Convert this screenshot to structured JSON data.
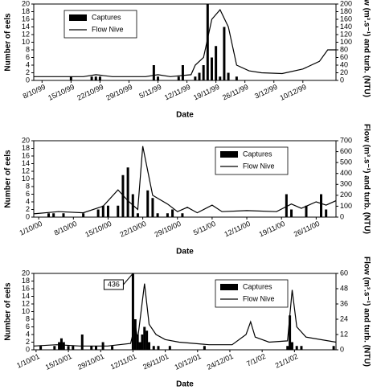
{
  "chart_data": [
    {
      "type": "combo",
      "xlabel": "Date",
      "ylabel": "Number of eels",
      "y2label": "Flow (m³.s⁻¹) and turb. (NTU)",
      "legend": "upper left",
      "xlim": [
        "1999-10-06",
        "1999-12-18"
      ],
      "xticks": [
        {
          "value": "1999-10-08",
          "label": "8/10/99"
        },
        {
          "value": "1999-10-15",
          "label": "15/10/99"
        },
        {
          "value": "1999-10-22",
          "label": "22/10/99"
        },
        {
          "value": "1999-10-29",
          "label": "29/10/99"
        },
        {
          "value": "1999-11-05",
          "label": "5/11/99"
        },
        {
          "value": "1999-11-12",
          "label": "12/11/99"
        },
        {
          "value": "1999-11-19",
          "label": "19/11/99"
        },
        {
          "value": "1999-11-26",
          "label": "26/11/99"
        },
        {
          "value": "1999-12-03",
          "label": "3/12/99"
        },
        {
          "value": "1999-12-10",
          "label": "10/12/99"
        }
      ],
      "ylim": [
        0,
        20
      ],
      "yticks": [
        0,
        2,
        4,
        6,
        8,
        10,
        12,
        14,
        16,
        18,
        20
      ],
      "y2lim": [
        0,
        200
      ],
      "y2ticks": [
        0,
        20,
        40,
        60,
        80,
        100,
        120,
        140,
        160,
        180,
        200
      ],
      "series": [
        {
          "name": "Captures",
          "type": "bar",
          "color": "#000000",
          "x": [
            "1999-10-15",
            "1999-10-20",
            "1999-10-21",
            "1999-10-22",
            "1999-11-04",
            "1999-11-05",
            "1999-11-10",
            "1999-11-11",
            "1999-11-14",
            "1999-11-15",
            "1999-11-16",
            "1999-11-17",
            "1999-11-18",
            "1999-11-19",
            "1999-11-20",
            "1999-11-21",
            "1999-11-22",
            "1999-11-24"
          ],
          "values": [
            1,
            1,
            1,
            1,
            4,
            1,
            1,
            4,
            1,
            2,
            4,
            20,
            6,
            9,
            1,
            14,
            2,
            1
          ]
        },
        {
          "name": "Flow Nive",
          "type": "line",
          "axis": "y2",
          "color": "#000000",
          "x": [
            "1999-10-06",
            "1999-10-18",
            "1999-10-21",
            "1999-10-25",
            "1999-11-02",
            "1999-11-05",
            "1999-11-08",
            "1999-11-13",
            "1999-11-14",
            "1999-11-16",
            "1999-11-18",
            "1999-11-20",
            "1999-11-22",
            "1999-11-24",
            "1999-11-27",
            "1999-11-30",
            "1999-12-05",
            "1999-12-10",
            "1999-12-14",
            "1999-12-16",
            "1999-12-18"
          ],
          "values": [
            10,
            10,
            15,
            10,
            10,
            15,
            10,
            15,
            40,
            60,
            160,
            185,
            140,
            40,
            25,
            20,
            18,
            30,
            50,
            80,
            80
          ]
        }
      ]
    },
    {
      "type": "combo",
      "xlabel": "Date",
      "ylabel": "Number of eels",
      "y2label": "Flow (m³.s⁻¹) and turb. (NTU)",
      "legend": "upper right",
      "xlim": [
        "2000-09-30",
        "2000-11-30"
      ],
      "xticks": [
        {
          "value": "2000-10-01",
          "label": "1/10/00"
        },
        {
          "value": "2000-10-08",
          "label": "8/10/00"
        },
        {
          "value": "2000-10-15",
          "label": "15/10/00"
        },
        {
          "value": "2000-10-22",
          "label": "22/10/00"
        },
        {
          "value": "2000-10-29",
          "label": "29/10/00"
        },
        {
          "value": "2000-11-05",
          "label": "5/11/00"
        },
        {
          "value": "2000-11-12",
          "label": "12/11/00"
        },
        {
          "value": "2000-11-19",
          "label": "19/11/00"
        },
        {
          "value": "2000-11-26",
          "label": "26/11/00"
        }
      ],
      "ylim": [
        0,
        20
      ],
      "yticks": [
        0,
        2,
        4,
        6,
        8,
        10,
        12,
        14,
        16,
        18,
        20
      ],
      "y2lim": [
        0,
        700
      ],
      "y2ticks": [
        0,
        100,
        200,
        300,
        400,
        500,
        600,
        700
      ],
      "series": [
        {
          "name": "Captures",
          "type": "bar",
          "color": "#000000",
          "x": [
            "2000-10-03",
            "2000-10-04",
            "2000-10-06",
            "2000-10-10",
            "2000-10-13",
            "2000-10-14",
            "2000-10-15",
            "2000-10-17",
            "2000-10-18",
            "2000-10-19",
            "2000-10-20",
            "2000-10-21",
            "2000-10-23",
            "2000-10-24",
            "2000-10-25",
            "2000-10-27",
            "2000-10-28",
            "2000-10-30",
            "2000-11-20",
            "2000-11-21",
            "2000-11-24",
            "2000-11-27",
            "2000-11-28"
          ],
          "values": [
            1,
            1,
            1,
            1,
            2,
            3,
            3,
            3,
            11,
            13,
            6,
            1,
            7,
            5,
            1,
            1,
            2,
            1,
            6,
            2,
            3,
            6,
            2
          ]
        },
        {
          "name": "Flow Nive",
          "type": "line",
          "axis": "y2",
          "color": "#000000",
          "x": [
            "2000-09-30",
            "2000-10-05",
            "2000-10-10",
            "2000-10-14",
            "2000-10-17",
            "2000-10-19",
            "2000-10-21",
            "2000-10-22",
            "2000-10-24",
            "2000-10-27",
            "2000-10-29",
            "2000-10-31",
            "2000-11-02",
            "2000-11-05",
            "2000-11-07",
            "2000-11-12",
            "2000-11-18",
            "2000-11-21",
            "2000-11-23",
            "2000-11-26",
            "2000-11-28",
            "2000-11-30"
          ],
          "values": [
            30,
            50,
            40,
            100,
            250,
            150,
            70,
            650,
            200,
            120,
            50,
            90,
            40,
            110,
            50,
            60,
            50,
            120,
            80,
            140,
            110,
            150
          ]
        }
      ]
    },
    {
      "type": "combo",
      "xlabel": "Date",
      "ylabel": "Number of eels",
      "y2label": "Flow (m³.s⁻¹) and turb. (NTU)",
      "legend": "upper right",
      "xlim": [
        "2001-09-30",
        "2002-02-08"
      ],
      "xticks": [
        {
          "value": "2001-10-01",
          "label": "1/10/01"
        },
        {
          "value": "2001-10-15",
          "label": "15/10/01"
        },
        {
          "value": "2001-10-29",
          "label": "29/10/01"
        },
        {
          "value": "2001-11-12",
          "label": "12/11/01"
        },
        {
          "value": "2001-11-26",
          "label": "26/11/01"
        },
        {
          "value": "2001-12-10",
          "label": "10/12/01"
        },
        {
          "value": "2001-12-24",
          "label": "24/12/01"
        },
        {
          "value": "2002-01-07",
          "label": "7/1/02"
        },
        {
          "value": "2002-01-21",
          "label": "21/1/02"
        }
      ],
      "ylim": [
        0,
        20
      ],
      "yticks": [
        0,
        2,
        4,
        6,
        8,
        10,
        12,
        14,
        16,
        18,
        20
      ],
      "y2lim": [
        0,
        60
      ],
      "y2ticks": [
        0,
        12,
        24,
        36,
        48,
        60
      ],
      "series": [
        {
          "name": "Captures",
          "type": "bar",
          "color": "#000000",
          "x": [
            "2001-10-03",
            "2001-10-09",
            "2001-10-11",
            "2001-10-12",
            "2001-10-13",
            "2001-10-15",
            "2001-10-17",
            "2001-10-21",
            "2001-10-25",
            "2001-10-27",
            "2001-10-30",
            "2001-11-03",
            "2001-11-12",
            "2001-11-13",
            "2001-11-14",
            "2001-11-15",
            "2001-11-16",
            "2001-11-17",
            "2001-11-18",
            "2001-11-19",
            "2001-11-21",
            "2001-11-23",
            "2001-11-28",
            "2001-12-13",
            "2002-01-18",
            "2002-01-19",
            "2002-01-20",
            "2002-01-22",
            "2002-01-24",
            "2002-02-07"
          ],
          "values": [
            1,
            1,
            2,
            3,
            2,
            1,
            1,
            4,
            1,
            1,
            2,
            1,
            436,
            8,
            4,
            2,
            4,
            6,
            5,
            2,
            1,
            1,
            1,
            1,
            1,
            9,
            2,
            1,
            1,
            1
          ],
          "value_labels": [
            null,
            null,
            null,
            null,
            null,
            null,
            null,
            null,
            null,
            null,
            null,
            null,
            "436",
            null,
            null,
            null,
            null,
            null,
            null,
            null,
            null,
            null,
            null,
            null,
            null,
            null,
            null,
            null,
            null,
            null
          ]
        },
        {
          "name": "Flow Nive",
          "type": "line",
          "axis": "y2",
          "color": "#000000",
          "x": [
            "2001-09-30",
            "2001-10-10",
            "2001-10-20",
            "2001-11-01",
            "2001-11-11",
            "2001-11-13",
            "2001-11-14",
            "2001-11-17",
            "2001-11-19",
            "2001-11-22",
            "2001-11-26",
            "2001-12-02",
            "2001-12-15",
            "2001-12-25",
            "2001-12-31",
            "2002-01-02",
            "2002-01-04",
            "2002-01-10",
            "2002-01-18",
            "2002-01-20",
            "2002-01-22",
            "2002-01-26",
            "2002-02-08"
          ],
          "values": [
            3,
            4,
            3,
            3,
            5,
            20,
            8,
            52,
            20,
            12,
            8,
            6,
            4,
            4,
            12,
            22,
            10,
            6,
            7,
            47,
            18,
            10,
            6
          ]
        }
      ]
    }
  ]
}
